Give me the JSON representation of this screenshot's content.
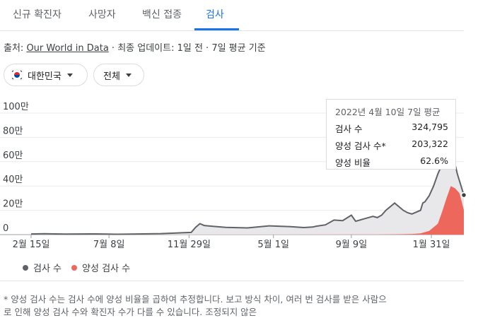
{
  "tabs": [
    "신규 확진자",
    "사망자",
    "백신 접종",
    "검사"
  ],
  "source": {
    "prefix": "출처: ",
    "link": "Our World in Data",
    "suffix": " · 최종 업데이트: 1일 전 · 7일 평균 기준"
  },
  "filters": {
    "country": "대한민국",
    "range": "전체"
  },
  "tooltip": {
    "title": "2022년 4월 10일 7일 평균",
    "rows": [
      {
        "label": "검사 수",
        "value": "324,795"
      },
      {
        "label": "양성 검사 수*",
        "value": "203,322"
      },
      {
        "label": "양성 비율",
        "value": "62.6%"
      }
    ]
  },
  "legend": [
    {
      "label": "검사 수",
      "color": "#5f6368"
    },
    {
      "label": "양성 검사 수",
      "color": "#ee675c"
    }
  ],
  "footnote": {
    "line1": "* 양성 검사 수는 검사 수에 양성 비율을 곱하여 추정합니다. 보고 방식 차이, 여러 번 검사를 받은 사람으",
    "line2": "로 인해 양성 검사 수와 확진자 수가 다를 수 있습니다. 조정되지 않은"
  },
  "chart_data": {
    "type": "area",
    "y_ticks": [
      "0",
      "20만",
      "40만",
      "60만",
      "80만",
      "100만"
    ],
    "x_ticks": [
      "2월 15일",
      "7월 8일",
      "11월 29일",
      "5월 1일",
      "9월 9일",
      "1월 31일"
    ],
    "ylim": [
      0,
      1000000
    ],
    "series": [
      {
        "name": "검사 수",
        "color": "#5f6368",
        "fill": "#e8e8ea",
        "x": [
          0,
          0.03,
          0.08,
          0.15,
          0.2,
          0.3,
          0.37,
          0.38,
          0.39,
          0.4,
          0.42,
          0.45,
          0.5,
          0.55,
          0.6,
          0.63,
          0.65,
          0.66,
          0.68,
          0.7,
          0.72,
          0.74,
          0.75,
          0.77,
          0.79,
          0.8,
          0.81,
          0.82,
          0.84,
          0.86,
          0.87,
          0.88,
          0.9,
          0.905,
          0.91,
          0.92,
          0.93,
          0.94,
          0.95,
          0.96,
          0.97,
          0.975,
          0.985,
          1.0
        ],
        "y": [
          5000,
          7000,
          4000,
          6000,
          3000,
          8000,
          18000,
          60000,
          90000,
          75000,
          68000,
          60000,
          55000,
          72000,
          65000,
          58000,
          62000,
          70000,
          80000,
          120000,
          115000,
          160000,
          110000,
          130000,
          150000,
          140000,
          160000,
          200000,
          260000,
          200000,
          180000,
          170000,
          200000,
          260000,
          270000,
          320000,
          400000,
          500000,
          580000,
          650000,
          700000,
          650000,
          500000,
          325000
        ]
      },
      {
        "name": "양성 검사 수",
        "color": "#ee675c",
        "fill": "#ee675c",
        "x": [
          0,
          0.8,
          0.85,
          0.88,
          0.9,
          0.92,
          0.94,
          0.95,
          0.96,
          0.97,
          0.98,
          0.99,
          1.0
        ],
        "y": [
          0,
          1000,
          3000,
          5000,
          10000,
          30000,
          90000,
          190000,
          300000,
          400000,
          380000,
          340000,
          203000
        ]
      }
    ]
  }
}
